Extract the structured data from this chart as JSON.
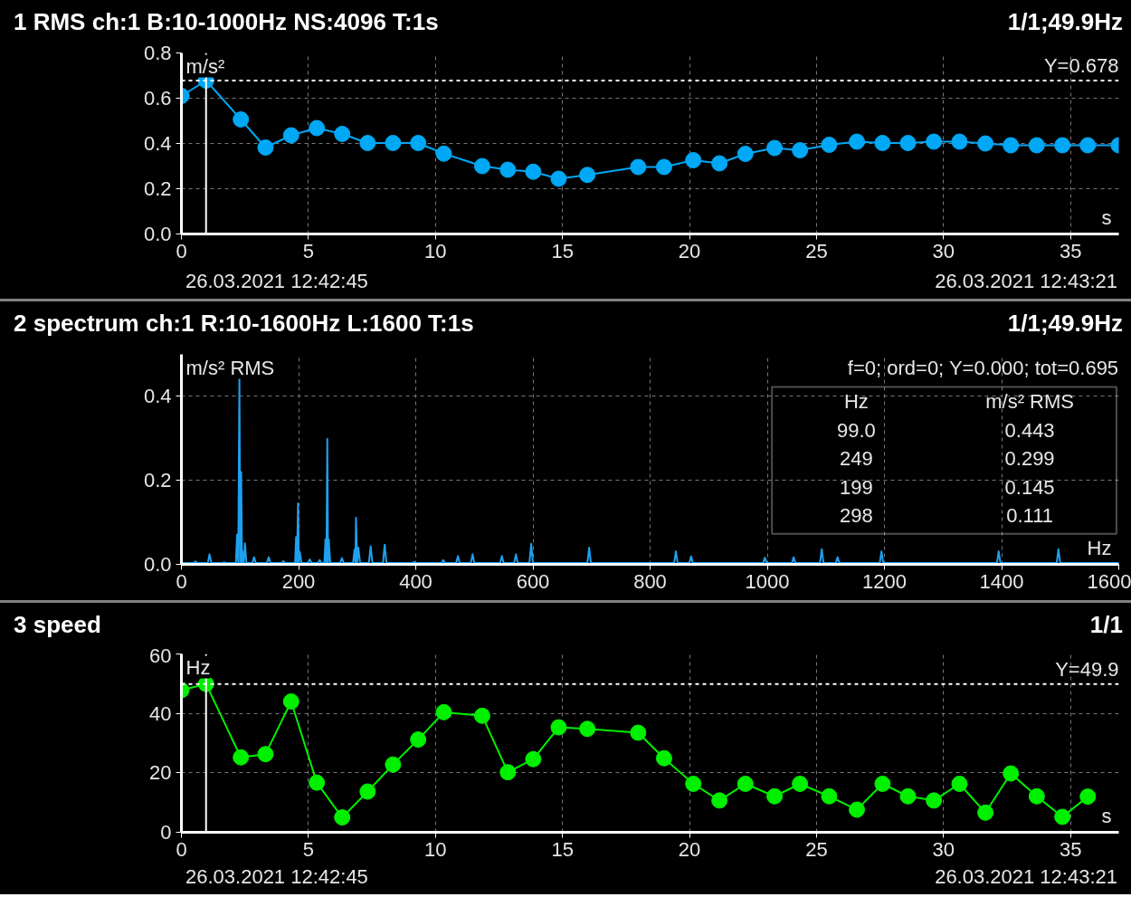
{
  "chart_data": [
    {
      "type": "line",
      "title": "1 RMS ch:1 B:10-1000Hz NS:4096 T:1s",
      "subtitle": "1/1;49.9Hz",
      "xlabel": "s",
      "ylabel": "m/s²",
      "x": [
        0,
        0.97,
        2.34,
        3.31,
        4.32,
        5.33,
        6.33,
        7.33,
        8.33,
        9.32,
        10.33,
        11.84,
        12.85,
        13.85,
        14.85,
        15.98,
        17.98,
        19.0,
        20.15,
        21.18,
        22.2,
        23.35,
        24.35,
        25.5,
        26.59,
        27.6,
        28.6,
        29.62,
        30.63,
        31.65,
        32.65,
        33.67,
        34.68,
        35.68,
        36.9
      ],
      "series": [
        {
          "color": "#00a8f5",
          "values": [
            0.61,
            0.678,
            0.506,
            0.382,
            0.436,
            0.468,
            0.442,
            0.402,
            0.402,
            0.402,
            0.355,
            0.3,
            0.284,
            0.275,
            0.244,
            0.261,
            0.296,
            0.296,
            0.326,
            0.312,
            0.354,
            0.38,
            0.37,
            0.394,
            0.408,
            0.402,
            0.402,
            0.408,
            0.408,
            0.4,
            0.392,
            0.392,
            0.392,
            0.392,
            0.392
          ]
        }
      ],
      "xlim": [
        0,
        36.9
      ],
      "ylim": [
        0,
        0.8
      ],
      "xticks": [
        0,
        5,
        10,
        15,
        20,
        25,
        30,
        35
      ],
      "yticks": [
        {
          "value": 0,
          "label": "0.0"
        },
        0.2,
        0.4,
        0.6,
        0.8
      ],
      "grid": true,
      "marker": "circle",
      "ref_lines": [
        {
          "axis": "x",
          "value": 0.97,
          "color": "#ffffff",
          "line_style": "solid"
        },
        {
          "axis": "y",
          "value": 0.678,
          "label": "Y=0.678",
          "color": "#ffffff",
          "line_style": "dashed"
        }
      ],
      "annotations": [
        "26.03.2021 12:42:45",
        "26.03.2021 12:43:21"
      ]
    },
    {
      "type": "line",
      "title": "2 spectrum ch:1 R:10-1600Hz L:1600 T:1s",
      "subtitle": "1/1;49.9Hz",
      "xlabel": "Hz",
      "ylabel": "m/s² RMS",
      "x": [
        0,
        21,
        23.8,
        27,
        45,
        48,
        51,
        70,
        73,
        76,
        93,
        95,
        97,
        99,
        100.5,
        102,
        103.5,
        105,
        106.5,
        108.5,
        111,
        121,
        124,
        127,
        146,
        149,
        152,
        171,
        174,
        177,
        194,
        195.7,
        197.3,
        199,
        200.5,
        202,
        205,
        216,
        219,
        222,
        233,
        236,
        239,
        244,
        246,
        247.5,
        249,
        250.3,
        251.5,
        254,
        271,
        274,
        277,
        293,
        295.5,
        297,
        298,
        300,
        302,
        305,
        320,
        323,
        326,
        344,
        347,
        350,
        394,
        397,
        400,
        444,
        447,
        450,
        469,
        472,
        475,
        494,
        497,
        500,
        544,
        547,
        550,
        568,
        571,
        574,
        594,
        597,
        600,
        693,
        696,
        699,
        841,
        844,
        847,
        867,
        870,
        873,
        993,
        996,
        999,
        1042,
        1045,
        1048,
        1090,
        1093,
        1096,
        1117,
        1120,
        1123,
        1192,
        1195,
        1198,
        1392,
        1395,
        1398,
        1494,
        1497,
        1500,
        1600
      ],
      "series": [
        {
          "color": "#1ea0f0",
          "values": [
            0.003,
            0.003,
            0.007,
            0.003,
            0.003,
            0.024,
            0.003,
            0.003,
            0.005,
            0.003,
            0.003,
            0.071,
            0.003,
            0.443,
            0.003,
            0.22,
            0.003,
            0.03,
            0.003,
            0.05,
            0.003,
            0.003,
            0.017,
            0.003,
            0.003,
            0.017,
            0.003,
            0.003,
            0.008,
            0.003,
            0.003,
            0.065,
            0.003,
            0.145,
            0.003,
            0.03,
            0.003,
            0.003,
            0.012,
            0.003,
            0.003,
            0.01,
            0.003,
            0.003,
            0.06,
            0.003,
            0.299,
            0.003,
            0.06,
            0.003,
            0.003,
            0.015,
            0.003,
            0.003,
            0.035,
            0.003,
            0.111,
            0.003,
            0.04,
            0.003,
            0.003,
            0.043,
            0.003,
            0.003,
            0.047,
            0.003,
            0.003,
            0.006,
            0.003,
            0.003,
            0.01,
            0.003,
            0.003,
            0.02,
            0.003,
            0.003,
            0.024,
            0.003,
            0.003,
            0.02,
            0.003,
            0.003,
            0.024,
            0.003,
            0.003,
            0.049,
            0.003,
            0.003,
            0.04,
            0.003,
            0.003,
            0.031,
            0.003,
            0.003,
            0.019,
            0.003,
            0.003,
            0.016,
            0.003,
            0.003,
            0.017,
            0.003,
            0.003,
            0.036,
            0.003,
            0.003,
            0.017,
            0.003,
            0.003,
            0.031,
            0.003,
            0.003,
            0.031,
            0.003,
            0.003,
            0.036,
            0.003,
            0.003
          ]
        }
      ],
      "xlim": [
        0,
        1600
      ],
      "ylim": [
        0,
        0.5
      ],
      "xticks": [
        0,
        200,
        400,
        600,
        800,
        1000,
        1200,
        1400,
        1600
      ],
      "yticks": [
        {
          "value": 0,
          "label": "0.0"
        },
        0.2,
        0.4
      ],
      "grid": true,
      "annotations": [
        "f=0; ord=0; Y=0.000; tot=0.695",
        "Hz",
        "m/s² RMS",
        "99.0",
        "0.443",
        "249",
        "0.299",
        "199",
        "0.145",
        "298",
        "0.111"
      ]
    },
    {
      "type": "line",
      "title": "3 speed",
      "subtitle": "1/1",
      "xlabel": "s",
      "ylabel": "Hz",
      "x": [
        0,
        0.97,
        2.34,
        3.31,
        4.32,
        5.33,
        6.33,
        7.33,
        8.33,
        9.32,
        10.33,
        11.84,
        12.85,
        13.85,
        14.85,
        15.98,
        17.98,
        19.0,
        20.15,
        21.18,
        22.2,
        23.35,
        24.35,
        25.5,
        26.59,
        27.6,
        28.6,
        29.62,
        30.63,
        31.65,
        32.65,
        33.67,
        34.68,
        35.68
      ],
      "series": [
        {
          "color": "#00f000",
          "values": [
            47.8,
            49.9,
            25.2,
            26.3,
            44.0,
            16.7,
            5.0,
            13.7,
            22.8,
            31.2,
            40.4,
            39.2,
            20.2,
            24.6,
            35.3,
            34.8,
            33.5,
            24.9,
            16.3,
            10.7,
            16.3,
            12.1,
            16.3,
            12.1,
            7.6,
            16.3,
            12.1,
            10.7,
            16.3,
            6.6,
            19.8,
            12.1,
            5.2,
            12.0
          ]
        }
      ],
      "xlim": [
        0,
        36.9
      ],
      "ylim": [
        0,
        60
      ],
      "xticks": [
        0,
        5,
        10,
        15,
        20,
        25,
        30,
        35
      ],
      "yticks": [
        0,
        20,
        40,
        60
      ],
      "grid": true,
      "marker": "circle",
      "ref_lines": [
        {
          "axis": "x",
          "value": 0.97,
          "color": "#ffffff",
          "line_style": "solid"
        },
        {
          "axis": "y",
          "value": 49.9,
          "label": "Y=49.9",
          "color": "#ffffff",
          "line_style": "dashed"
        }
      ],
      "annotations": [
        "26.03.2021 12:42:45",
        "26.03.2021 12:43:21"
      ]
    }
  ]
}
